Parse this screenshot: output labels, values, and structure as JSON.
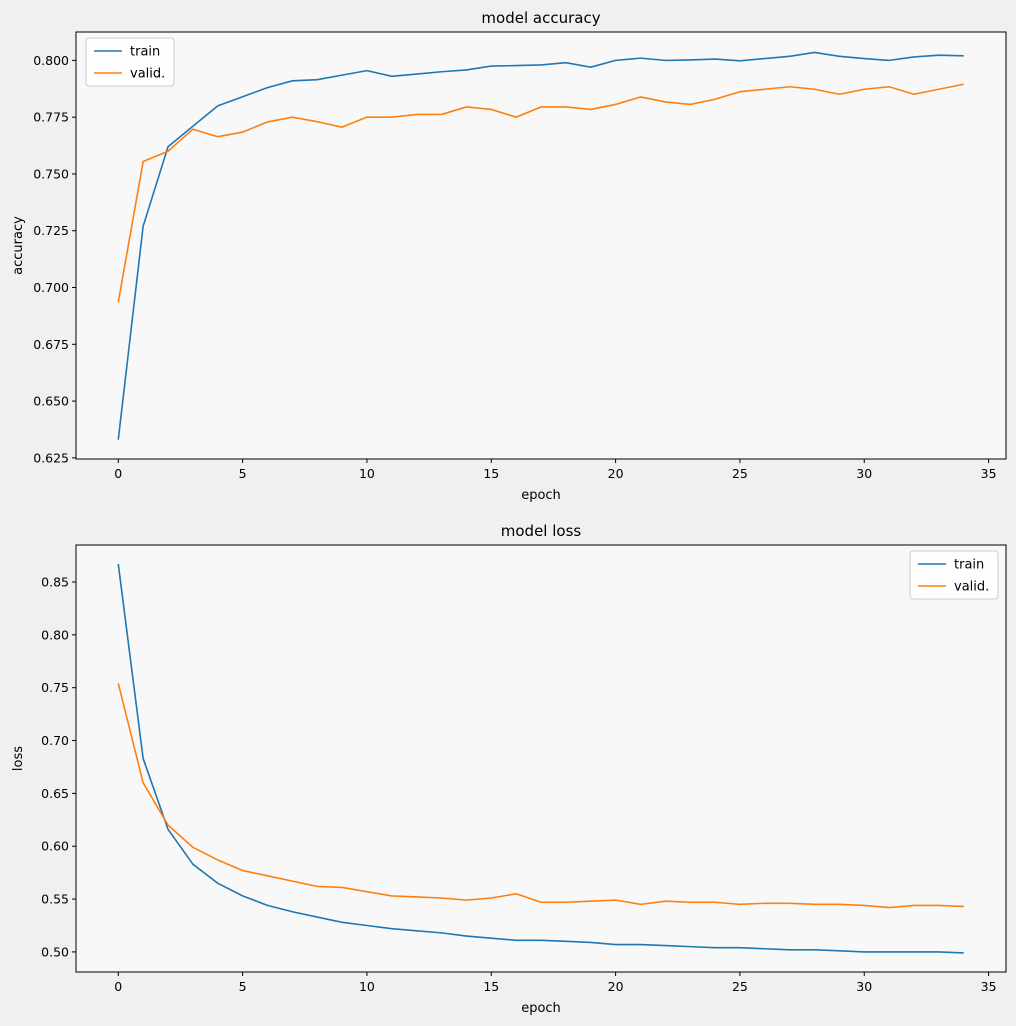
{
  "chart_data": [
    {
      "type": "line",
      "title": "model accuracy",
      "xlabel": "epoch",
      "ylabel": "accuracy",
      "xlim": [
        -1.7,
        35.7
      ],
      "ylim": [
        0.6245,
        0.8125
      ],
      "xticks": [
        0,
        5,
        10,
        15,
        20,
        25,
        30,
        35
      ],
      "xtick_labels": [
        "0",
        "5",
        "10",
        "15",
        "20",
        "25",
        "30",
        "35"
      ],
      "yticks": [
        0.625,
        0.65,
        0.675,
        0.7,
        0.725,
        0.75,
        0.775,
        0.8
      ],
      "ytick_labels": [
        "0.625",
        "0.650",
        "0.675",
        "0.700",
        "0.725",
        "0.750",
        "0.775",
        "0.800"
      ],
      "legend": "top-left",
      "grid": false,
      "x": [
        0,
        1,
        2,
        3,
        4,
        5,
        6,
        7,
        8,
        9,
        10,
        11,
        12,
        13,
        14,
        15,
        16,
        17,
        18,
        19,
        20,
        21,
        22,
        23,
        24,
        25,
        26,
        27,
        28,
        29,
        30,
        31,
        32,
        33,
        34
      ],
      "series": [
        {
          "name": "train",
          "color": "#1f77b4",
          "values": [
            0.633,
            0.727,
            0.762,
            0.771,
            0.78,
            0.784,
            0.788,
            0.791,
            0.7915,
            0.7935,
            0.7955,
            0.793,
            0.794,
            0.795,
            0.7958,
            0.7975,
            0.7977,
            0.798,
            0.799,
            0.797,
            0.8,
            0.801,
            0.8,
            0.8002,
            0.8006,
            0.7998,
            0.8008,
            0.8018,
            0.8035,
            0.8018,
            0.8008,
            0.8,
            0.8015,
            0.8023,
            0.802
          ]
        },
        {
          "name": "valid.",
          "color": "#ff7f0e",
          "values": [
            0.6935,
            0.7555,
            0.76,
            0.7697,
            0.7664,
            0.7684,
            0.7729,
            0.775,
            0.773,
            0.7706,
            0.775,
            0.775,
            0.7762,
            0.7762,
            0.7795,
            0.7784,
            0.775,
            0.7795,
            0.7795,
            0.7784,
            0.7806,
            0.7839,
            0.7817,
            0.7806,
            0.7829,
            0.7862,
            0.7873,
            0.7884,
            0.7873,
            0.7851,
            0.7873,
            0.7884,
            0.7851,
            0.7873,
            0.7895
          ]
        }
      ]
    },
    {
      "type": "line",
      "title": "model loss",
      "xlabel": "epoch",
      "ylabel": "loss",
      "xlim": [
        -1.7,
        35.7
      ],
      "ylim": [
        0.481,
        0.885
      ],
      "xticks": [
        0,
        5,
        10,
        15,
        20,
        25,
        30,
        35
      ],
      "xtick_labels": [
        "0",
        "5",
        "10",
        "15",
        "20",
        "25",
        "30",
        "35"
      ],
      "yticks": [
        0.5,
        0.55,
        0.6,
        0.65,
        0.7,
        0.75,
        0.8,
        0.85
      ],
      "ytick_labels": [
        "0.50",
        "0.55",
        "0.60",
        "0.65",
        "0.70",
        "0.75",
        "0.80",
        "0.85"
      ],
      "legend": "top-right",
      "grid": false,
      "x": [
        0,
        1,
        2,
        3,
        4,
        5,
        6,
        7,
        8,
        9,
        10,
        11,
        12,
        13,
        14,
        15,
        16,
        17,
        18,
        19,
        20,
        21,
        22,
        23,
        24,
        25,
        26,
        27,
        28,
        29,
        30,
        31,
        32,
        33,
        34
      ],
      "series": [
        {
          "name": "train",
          "color": "#1f77b4",
          "values": [
            0.867,
            0.683,
            0.616,
            0.583,
            0.565,
            0.553,
            0.544,
            0.538,
            0.533,
            0.528,
            0.525,
            0.522,
            0.52,
            0.518,
            0.515,
            0.513,
            0.511,
            0.511,
            0.51,
            0.509,
            0.507,
            0.507,
            0.506,
            0.505,
            0.504,
            0.504,
            0.503,
            0.502,
            0.502,
            0.501,
            0.5,
            0.5,
            0.5,
            0.5,
            0.499
          ]
        },
        {
          "name": "valid.",
          "color": "#ff7f0e",
          "values": [
            0.754,
            0.66,
            0.62,
            0.599,
            0.587,
            0.577,
            0.572,
            0.567,
            0.562,
            0.561,
            0.557,
            0.553,
            0.552,
            0.551,
            0.549,
            0.551,
            0.555,
            0.547,
            0.547,
            0.548,
            0.549,
            0.545,
            0.548,
            0.547,
            0.547,
            0.545,
            0.546,
            0.546,
            0.545,
            0.545,
            0.544,
            0.542,
            0.544,
            0.544,
            0.543
          ]
        }
      ]
    }
  ]
}
